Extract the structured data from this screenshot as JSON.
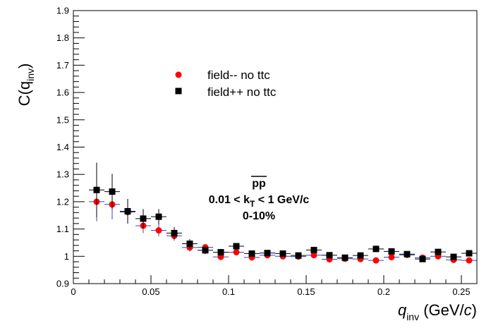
{
  "chart_data": {
    "type": "scatter",
    "xlabel": {
      "main": "q",
      "sub": "inv",
      "unit_prefix": " (GeV/",
      "unit_italic": "c",
      "unit_suffix": ")"
    },
    "ylabel": {
      "main": "C(q",
      "sub": "inv",
      "close": ")"
    },
    "xlim": [
      0,
      0.26
    ],
    "ylim": [
      0.9,
      1.9
    ],
    "x_ticks": [
      0,
      0.05,
      0.1,
      0.15,
      0.2,
      0.25
    ],
    "x_tick_labels": [
      "0",
      "0.05",
      "0.1",
      "0.15",
      "0.2",
      "0.25"
    ],
    "y_ticks": [
      0.9,
      1.0,
      1.1,
      1.2,
      1.3,
      1.4,
      1.5,
      1.6,
      1.7,
      1.8,
      1.9
    ],
    "y_tick_labels": [
      "0.9",
      "1",
      "1.1",
      "1.2",
      "1.3",
      "1.4",
      "1.5",
      "1.6",
      "1.7",
      "1.8",
      "1.9"
    ],
    "grid": false,
    "legend_position": "top-center",
    "x_error": 0.005,
    "series": [
      {
        "name": "field-- no ttc",
        "marker": "circle",
        "color": "#ff0000",
        "x": [
          0.015,
          0.025,
          0.035,
          0.045,
          0.055,
          0.065,
          0.075,
          0.085,
          0.095,
          0.105,
          0.115,
          0.125,
          0.135,
          0.145,
          0.155,
          0.165,
          0.175,
          0.185,
          0.195,
          0.205,
          0.215,
          0.225,
          0.235,
          0.245,
          0.255
        ],
        "y": [
          1.2,
          1.19,
          1.162,
          1.112,
          1.095,
          1.075,
          1.032,
          1.033,
          0.998,
          1.015,
          0.996,
          1.004,
          1.0,
          0.999,
          1.004,
          0.989,
          0.991,
          0.99,
          0.985,
          0.997,
          1.005,
          0.995,
          1.0,
          0.987,
          0.985
        ],
        "yerr": [
          0.072,
          0.055,
          0.038,
          0.027,
          0.022,
          0.018,
          0.014,
          0.012,
          0.01,
          0.01,
          0.009,
          0.009,
          0.008,
          0.008,
          0.008,
          0.008,
          0.007,
          0.007,
          0.007,
          0.007,
          0.007,
          0.007,
          0.007,
          0.007,
          0.007
        ]
      },
      {
        "name": "field++ no ttc",
        "marker": "square",
        "color": "#000000",
        "x": [
          0.015,
          0.025,
          0.035,
          0.045,
          0.055,
          0.065,
          0.075,
          0.085,
          0.095,
          0.105,
          0.115,
          0.125,
          0.135,
          0.145,
          0.155,
          0.165,
          0.175,
          0.185,
          0.195,
          0.205,
          0.215,
          0.225,
          0.235,
          0.245,
          0.255
        ],
        "y": [
          1.243,
          1.237,
          1.165,
          1.138,
          1.145,
          1.085,
          1.046,
          1.022,
          1.015,
          1.037,
          1.01,
          1.012,
          1.01,
          1.003,
          1.023,
          1.004,
          0.995,
          1.003,
          1.027,
          1.018,
          1.008,
          0.99,
          1.016,
          0.998,
          1.011
        ],
        "yerr": [
          0.1,
          0.065,
          0.045,
          0.035,
          0.028,
          0.022,
          0.017,
          0.014,
          0.012,
          0.011,
          0.01,
          0.009,
          0.009,
          0.008,
          0.008,
          0.008,
          0.008,
          0.008,
          0.007,
          0.007,
          0.007,
          0.007,
          0.007,
          0.007,
          0.007
        ]
      }
    ],
    "annotations": {
      "particle_main": "p",
      "particle_second": "p",
      "kt_prefix": "0.01 < k",
      "kt_sub": "T",
      "kt_suffix": " < 1 GeV/c",
      "centrality": "0-10%"
    }
  }
}
